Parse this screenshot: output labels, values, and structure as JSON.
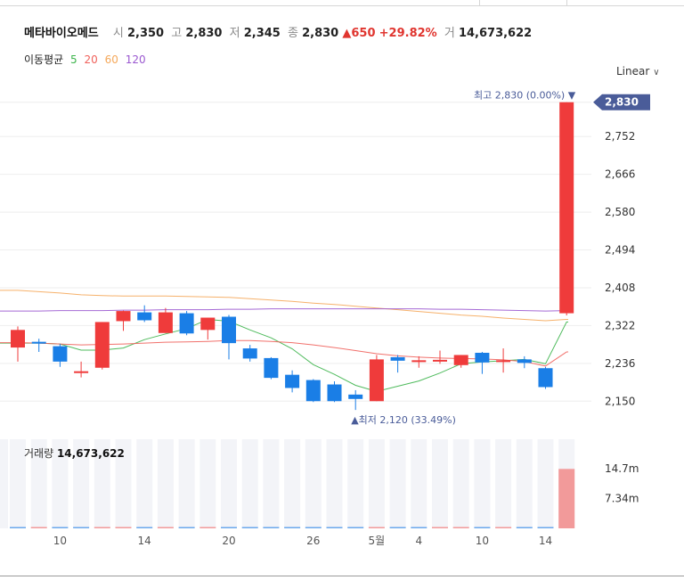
{
  "header": {
    "stock_name": "메타바이오메드",
    "open_label": "시",
    "open_value": "2,350",
    "high_label": "고",
    "high_value": "2,830",
    "low_label": "저",
    "low_value": "2,345",
    "close_label": "종",
    "close_value": "2,830",
    "change_value": "▲650",
    "change_pct": "+29.82%",
    "volume_label": "거",
    "volume_value": "14,673,622"
  },
  "moving_average": {
    "label": "이동평균",
    "periods": [
      {
        "label": "5",
        "color": "#3cb44b"
      },
      {
        "label": "20",
        "color": "#f0625c"
      },
      {
        "label": "60",
        "color": "#f5a85b"
      },
      {
        "label": "120",
        "color": "#9b59d0"
      }
    ]
  },
  "scale_selector": {
    "label": "Linear"
  },
  "colors": {
    "up": "#ef3b3b",
    "down": "#1a7ee6",
    "grid": "#eeeeee",
    "volume_bg": "#f3f4f8",
    "volume_up": "#f29a9a",
    "badge": "#4a5c99"
  },
  "chart_data": {
    "type": "candlestick",
    "price_axis": {
      "ylim": [
        2110,
        2870
      ],
      "ticks": [
        "2,150",
        "2,236",
        "2,322",
        "2,408",
        "2,494",
        "2,580",
        "2,666",
        "2,752"
      ],
      "tick_values": [
        2150,
        2236,
        2322,
        2408,
        2494,
        2580,
        2666,
        2752
      ]
    },
    "current_price_badge": "2,830",
    "high_annotation": "최고 2,830 (0.00%) ▼",
    "low_annotation": "▲최저 2,120 (33.49%)",
    "x_tick_labels": [
      {
        "label": "10",
        "index": 2
      },
      {
        "label": "14",
        "index": 6
      },
      {
        "label": "20",
        "index": 10
      },
      {
        "label": "26",
        "index": 14
      },
      {
        "label": "5월",
        "index": 17
      },
      {
        "label": "4",
        "index": 19
      },
      {
        "label": "10",
        "index": 22
      },
      {
        "label": "14",
        "index": 25
      }
    ],
    "candles": [
      {
        "o": 2272,
        "h": 2320,
        "l": 2240,
        "c": 2312
      },
      {
        "o": 2285,
        "h": 2292,
        "l": 2262,
        "c": 2283
      },
      {
        "o": 2275,
        "h": 2280,
        "l": 2228,
        "c": 2240
      },
      {
        "o": 2216,
        "h": 2240,
        "l": 2204,
        "c": 2218
      },
      {
        "o": 2226,
        "h": 2330,
        "l": 2222,
        "c": 2330
      },
      {
        "o": 2332,
        "h": 2356,
        "l": 2310,
        "c": 2355
      },
      {
        "o": 2352,
        "h": 2368,
        "l": 2330,
        "c": 2334
      },
      {
        "o": 2305,
        "h": 2362,
        "l": 2305,
        "c": 2352
      },
      {
        "o": 2350,
        "h": 2355,
        "l": 2300,
        "c": 2304
      },
      {
        "o": 2312,
        "h": 2340,
        "l": 2290,
        "c": 2340
      },
      {
        "o": 2342,
        "h": 2346,
        "l": 2245,
        "c": 2282
      },
      {
        "o": 2270,
        "h": 2278,
        "l": 2240,
        "c": 2247
      },
      {
        "o": 2248,
        "h": 2250,
        "l": 2200,
        "c": 2203
      },
      {
        "o": 2210,
        "h": 2220,
        "l": 2170,
        "c": 2180
      },
      {
        "o": 2198,
        "h": 2200,
        "l": 2148,
        "c": 2150
      },
      {
        "o": 2188,
        "h": 2195,
        "l": 2148,
        "c": 2150
      },
      {
        "o": 2165,
        "h": 2175,
        "l": 2130,
        "c": 2155
      },
      {
        "o": 2150,
        "h": 2255,
        "l": 2150,
        "c": 2245
      },
      {
        "o": 2250,
        "h": 2255,
        "l": 2215,
        "c": 2242
      },
      {
        "o": 2242,
        "h": 2252,
        "l": 2226,
        "c": 2243
      },
      {
        "o": 2240,
        "h": 2265,
        "l": 2235,
        "c": 2244
      },
      {
        "o": 2232,
        "h": 2255,
        "l": 2226,
        "c": 2255
      },
      {
        "o": 2260,
        "h": 2262,
        "l": 2212,
        "c": 2238
      },
      {
        "o": 2240,
        "h": 2270,
        "l": 2215,
        "c": 2243
      },
      {
        "o": 2245,
        "h": 2252,
        "l": 2225,
        "c": 2237
      },
      {
        "o": 2225,
        "h": 2228,
        "l": 2178,
        "c": 2182
      },
      {
        "o": 2350,
        "h": 2830,
        "l": 2345,
        "c": 2830
      }
    ],
    "ma_series": [
      {
        "name": "5",
        "color": "#3cb44b",
        "values": [
          2282,
          2282,
          2280,
          2266,
          2266,
          2271,
          2290,
          2303,
          2315,
          2336,
          2332,
          2312,
          2294,
          2269,
          2233,
          2211,
          2186,
          2172,
          2184,
          2196,
          2214,
          2235,
          2239,
          2242,
          2245,
          2235,
          2330
        ]
      },
      {
        "name": "20",
        "color": "#f0625c",
        "values": [
          2283,
          2282,
          2280,
          2278,
          2279,
          2280,
          2282,
          2284,
          2285,
          2286,
          2288,
          2288,
          2286,
          2283,
          2278,
          2272,
          2265,
          2258,
          2253,
          2250,
          2248,
          2247,
          2246,
          2244,
          2240,
          2230,
          2262
        ]
      },
      {
        "name": "60",
        "color": "#f5a85b",
        "values": [
          2402,
          2399,
          2396,
          2392,
          2390,
          2389,
          2389,
          2389,
          2388,
          2387,
          2386,
          2383,
          2380,
          2377,
          2373,
          2370,
          2366,
          2362,
          2358,
          2354,
          2350,
          2346,
          2343,
          2339,
          2336,
          2333,
          2336
        ]
      },
      {
        "name": "120",
        "color": "#9b59d0",
        "values": [
          2355,
          2355,
          2356,
          2356,
          2356,
          2357,
          2357,
          2358,
          2358,
          2358,
          2359,
          2359,
          2360,
          2360,
          2360,
          2360,
          2360,
          2360,
          2360,
          2360,
          2359,
          2359,
          2358,
          2357,
          2356,
          2355,
          2356
        ]
      }
    ],
    "volume": {
      "label": "거래량",
      "value": "14,673,622",
      "ticks": [
        "14.7m",
        "7.34m"
      ],
      "tick_values": [
        14.7,
        7.34
      ],
      "ylim": [
        0,
        22
      ],
      "values": [
        0.08,
        0,
        0,
        0,
        0.08,
        0.08,
        0.08,
        0,
        0,
        0,
        0.08,
        0.08,
        0.08,
        0.08,
        0,
        0,
        0,
        0.08,
        0,
        0,
        0,
        0,
        0,
        0.08,
        0,
        0,
        14.67
      ],
      "directions": [
        "down",
        "up",
        "down",
        "down",
        "up",
        "up",
        "down",
        "up",
        "down",
        "up",
        "down",
        "down",
        "down",
        "down",
        "down",
        "down",
        "down",
        "up",
        "down",
        "down",
        "up",
        "up",
        "down",
        "up",
        "down",
        "down",
        "up"
      ]
    }
  }
}
